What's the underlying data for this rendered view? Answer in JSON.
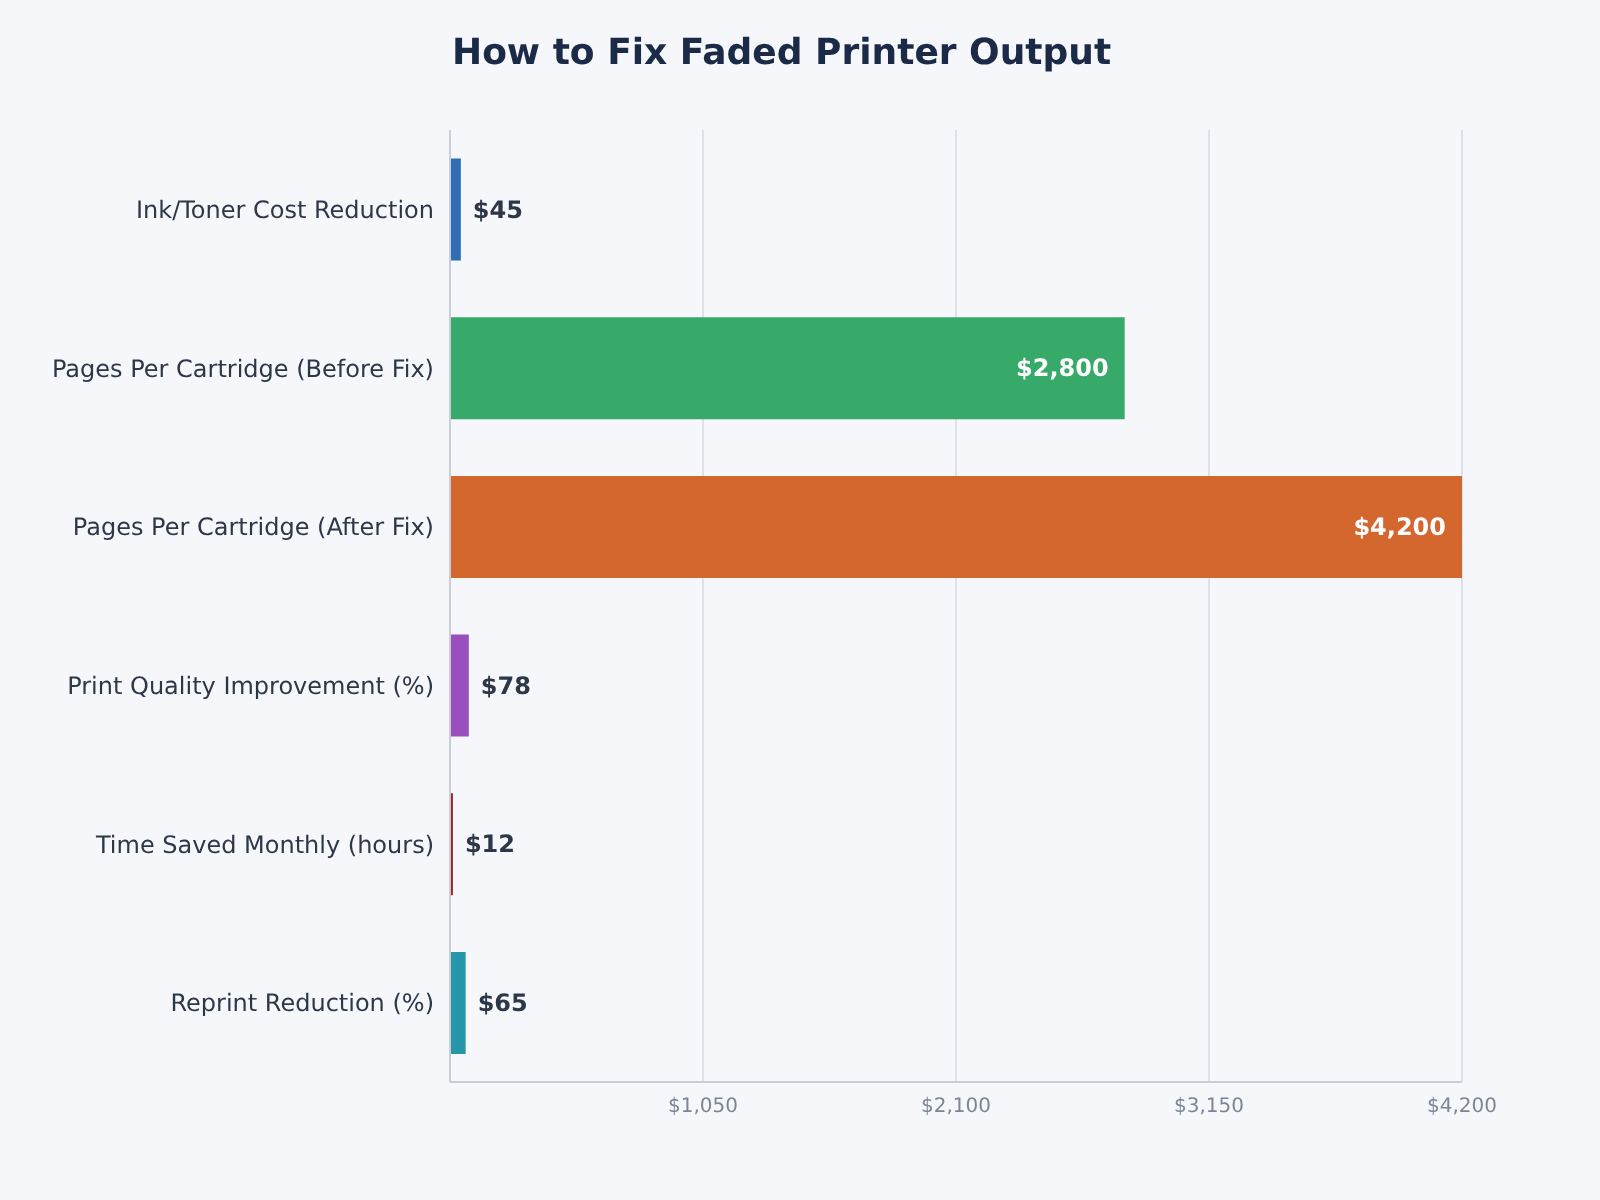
{
  "chart_data": {
    "type": "bar",
    "orientation": "horizontal",
    "title": "How to Fix Faded Printer Output",
    "categories": [
      "Ink/Toner Cost Reduction",
      "Pages Per Cartridge (Before Fix)",
      "Pages Per Cartridge (After Fix)",
      "Print Quality Improvement (%)",
      "Time Saved Monthly (hours)",
      "Reprint Reduction (%)"
    ],
    "values": [
      45,
      2800,
      4200,
      78,
      12,
      65
    ],
    "colors": [
      "#2f6db5",
      "#37a968",
      "#d3672e",
      "#9a4fbf",
      "#a01f24",
      "#2597a9"
    ],
    "value_labels": [
      "$45",
      "$2,800",
      "$4,200",
      "$78",
      "$12",
      "$65"
    ],
    "xlim": [
      0,
      4200
    ],
    "xticks": [
      {
        "value": 1050,
        "label": "$1,050"
      },
      {
        "value": 2100,
        "label": "$2,100"
      },
      {
        "value": 3150,
        "label": "$3,150"
      },
      {
        "value": 4200,
        "label": "$4,200"
      }
    ],
    "grid": "x"
  }
}
